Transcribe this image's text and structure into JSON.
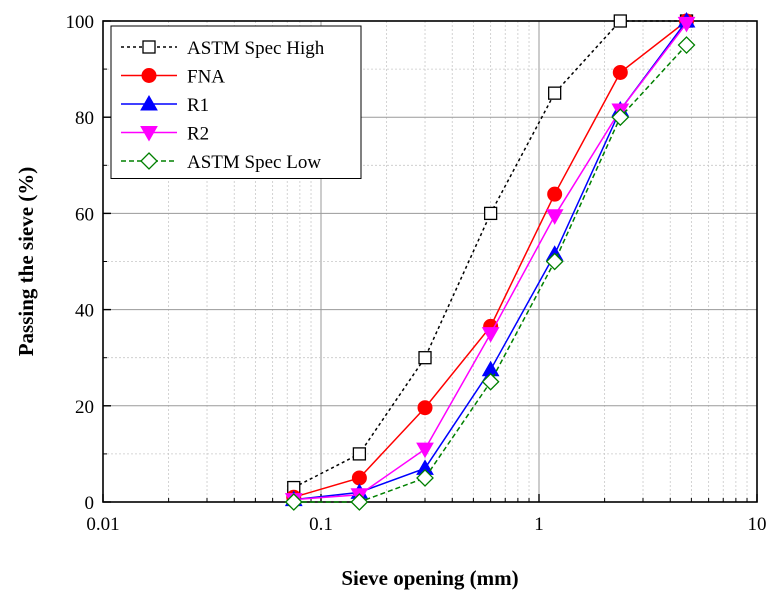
{
  "chart_data": {
    "type": "line",
    "title": "",
    "xlabel": "Sieve opening (mm)",
    "ylabel": "Passing the sieve (%)",
    "x_scale": "log",
    "xlim": [
      0.01,
      10
    ],
    "ylim": [
      0,
      100
    ],
    "x_ticks": [
      {
        "value": 0.01,
        "label": "0.01"
      },
      {
        "value": 0.1,
        "label": "0.1"
      },
      {
        "value": 1,
        "label": "1"
      },
      {
        "value": 10,
        "label": "10"
      }
    ],
    "y_ticks": [
      {
        "value": 0,
        "label": "0"
      },
      {
        "value": 20,
        "label": "20"
      },
      {
        "value": 40,
        "label": "40"
      },
      {
        "value": 60,
        "label": "60"
      },
      {
        "value": 80,
        "label": "80"
      },
      {
        "value": 100,
        "label": "100"
      }
    ],
    "grid": true,
    "legend_position": "top-left",
    "series": [
      {
        "name": "ASTM Spec High",
        "color": "#000000",
        "line": "dotted",
        "marker": "square-open",
        "x": [
          0.075,
          0.15,
          0.3,
          0.6,
          1.18,
          2.36,
          4.75
        ],
        "y": [
          3,
          10,
          30,
          60,
          85,
          100,
          100
        ]
      },
      {
        "name": "FNA",
        "color": "#ff0000",
        "line": "solid",
        "marker": "circle-filled",
        "x": [
          0.075,
          0.15,
          0.3,
          0.6,
          1.18,
          2.36,
          4.75
        ],
        "y": [
          1,
          5,
          19.6,
          36.5,
          64,
          89.3,
          100
        ]
      },
      {
        "name": "R1",
        "color": "#0000ff",
        "line": "solid",
        "marker": "triangle-up-filled",
        "x": [
          0.075,
          0.15,
          0.3,
          0.6,
          1.18,
          2.36,
          4.75
        ],
        "y": [
          0.5,
          2,
          7,
          27.5,
          51.5,
          81.5,
          100
        ]
      },
      {
        "name": "R2",
        "color": "#ff00ff",
        "line": "solid",
        "marker": "triangle-down-filled",
        "x": [
          0.075,
          0.15,
          0.3,
          0.6,
          1.18,
          2.36,
          4.75
        ],
        "y": [
          0.5,
          1.5,
          11,
          35,
          59.5,
          81.5,
          99.5
        ]
      },
      {
        "name": "ASTM Spec Low",
        "color": "#008000",
        "line": "dashed",
        "marker": "diamond-open",
        "x": [
          0.075,
          0.15,
          0.3,
          0.6,
          1.18,
          2.36,
          4.75
        ],
        "y": [
          0,
          0,
          5,
          25,
          50,
          80,
          95
        ]
      }
    ]
  }
}
